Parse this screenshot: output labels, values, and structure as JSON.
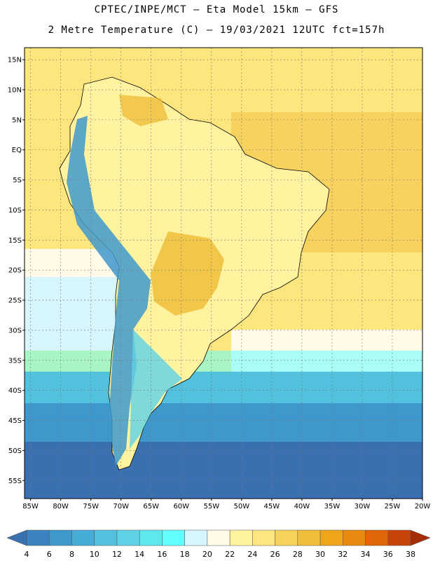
{
  "header": {
    "line1": "CPTEC/INPE/MCT –  Eta Model 15km – GFS",
    "line2": "2 Metre Temperature (C) – 19/03/2021 12UTC fct=157h"
  },
  "axes": {
    "lat_labels": [
      "15N",
      "10N",
      "5N",
      "EQ",
      "5S",
      "10S",
      "15S",
      "20S",
      "25S",
      "30S",
      "35S",
      "40S",
      "45S",
      "50S",
      "55S"
    ],
    "lon_labels": [
      "85W",
      "80W",
      "75W",
      "70W",
      "65W",
      "60W",
      "55W",
      "50W",
      "45W",
      "40W",
      "35W",
      "30W",
      "25W",
      "20W"
    ],
    "lat_range": [
      17,
      -58
    ],
    "lon_range": [
      -86,
      -20
    ]
  },
  "colorbar": {
    "labels": [
      "4",
      "6",
      "8",
      "10",
      "12",
      "14",
      "16",
      "18",
      "20",
      "22",
      "24",
      "26",
      "28",
      "30",
      "32",
      "34",
      "36",
      "38"
    ],
    "colors": [
      "#3a6fb0",
      "#3c82c0",
      "#3f98cc",
      "#45acd8",
      "#52c1de",
      "#5fd2e6",
      "#5de8ee",
      "#63ffff",
      "#d6f6fb",
      "#fffbe8",
      "#fff3a0",
      "#fde57f",
      "#f6d35a",
      "#f0bd3a",
      "#eea519",
      "#e88a10",
      "#e06608",
      "#c8440a",
      "#a62d06"
    ]
  },
  "map": {
    "ocean_colors": {
      "tropical": "#f7d25e",
      "subtropical": "#fde67e",
      "mild": "#fffbe8",
      "cool": "#d6f6fb",
      "cyan": "#63ffff",
      "teal": "#52c1de",
      "blue": "#3f98cc",
      "deep": "#3a6fb0"
    }
  }
}
